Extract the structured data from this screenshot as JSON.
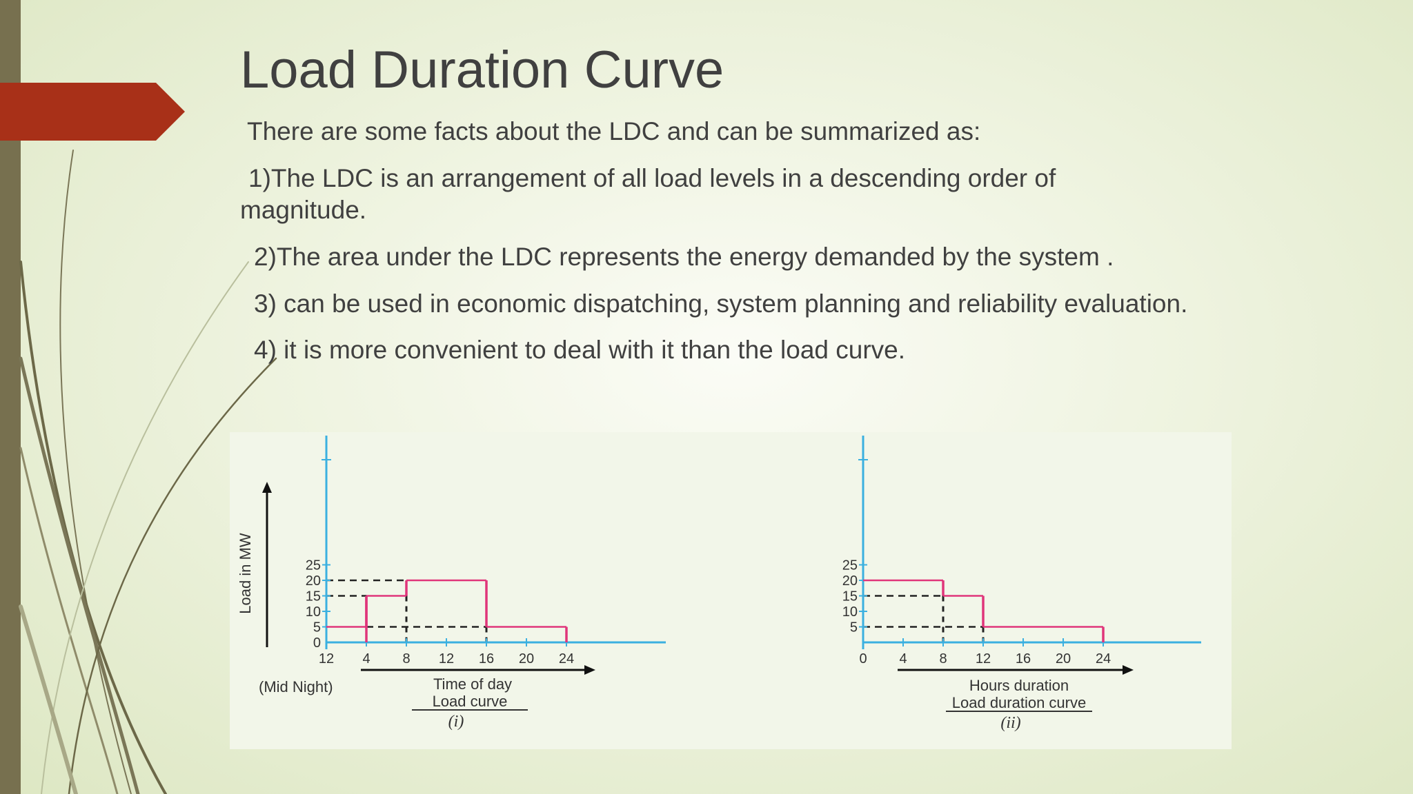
{
  "slide": {
    "title": "Load Duration Curve",
    "intro": "There are some facts about the LDC and can be summarized as:",
    "fact1_line1": "1)The LDC is an arrangement of all load levels in a descending order of",
    "fact1_line2": "magnitude.",
    "fact2": "2)The area under the LDC represents the energy demanded by the system .",
    "fact3": "3) can be used in economic dispatching, system planning and reliability   evaluation.",
    "fact4": "4) it is more convenient to deal with it than the load curve."
  },
  "colors": {
    "accent_arrow": "#a83018",
    "left_bar": "#77704f",
    "axis": "#3bb0e0",
    "curve": "#e0357a",
    "dashed": "#222222"
  },
  "chart_data": [
    {
      "type": "line",
      "step": true,
      "title": "",
      "xlabel": "Time of day",
      "ylabel": "Load in MW",
      "caption": "Load curve",
      "label": "(i)",
      "x_note": "(Mid Night)",
      "x_ticks": [
        "12",
        "4",
        "8",
        "12",
        "16",
        "20",
        "24"
      ],
      "y_ticks": [
        "0",
        "5",
        "10",
        "15",
        "20",
        "25"
      ],
      "xlim": [
        0,
        24
      ],
      "ylim": [
        0,
        25
      ],
      "segments": [
        {
          "x0": 0,
          "x1": 4,
          "y": 5
        },
        {
          "x0": 4,
          "x1": 8,
          "y": 15
        },
        {
          "x0": 8,
          "x1": 16,
          "y": 20
        },
        {
          "x0": 16,
          "x1": 24,
          "y": 5
        }
      ]
    },
    {
      "type": "line",
      "step": true,
      "title": "",
      "xlabel": "Hours duration",
      "ylabel": "",
      "caption": "Load duration curve",
      "label": "(ii)",
      "x_ticks": [
        "0",
        "4",
        "8",
        "12",
        "16",
        "20",
        "24"
      ],
      "y_ticks": [
        "5",
        "10",
        "15",
        "20",
        "25"
      ],
      "xlim": [
        0,
        24
      ],
      "ylim": [
        0,
        25
      ],
      "segments": [
        {
          "x0": 0,
          "x1": 8,
          "y": 20
        },
        {
          "x0": 8,
          "x1": 12,
          "y": 15
        },
        {
          "x0": 12,
          "x1": 24,
          "y": 5
        }
      ]
    }
  ]
}
